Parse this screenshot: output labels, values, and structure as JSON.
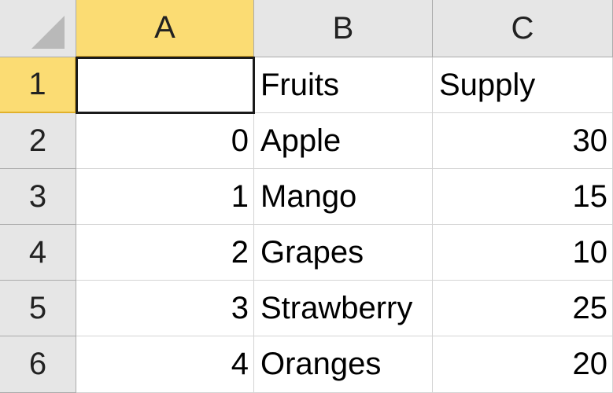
{
  "columns": [
    "A",
    "B",
    "C"
  ],
  "rows": [
    "1",
    "2",
    "3",
    "4",
    "5",
    "6"
  ],
  "selection": {
    "active_cell": "A1",
    "selected_column": "A",
    "selected_row": "1"
  },
  "cells": [
    [
      "",
      "Fruits",
      "Supply"
    ],
    [
      "0",
      "Apple",
      "30"
    ],
    [
      "1",
      "Mango",
      "15"
    ],
    [
      "2",
      "Grapes",
      "10"
    ],
    [
      "3",
      "Strawberry",
      "25"
    ],
    [
      "4",
      "Oranges",
      "20"
    ]
  ],
  "colors": {
    "header_bg": "#e6e6e6",
    "selected_header_bg": "#fbdc73",
    "selected_header_border": "#e1b12c",
    "gridline": "#d4d4d4"
  }
}
